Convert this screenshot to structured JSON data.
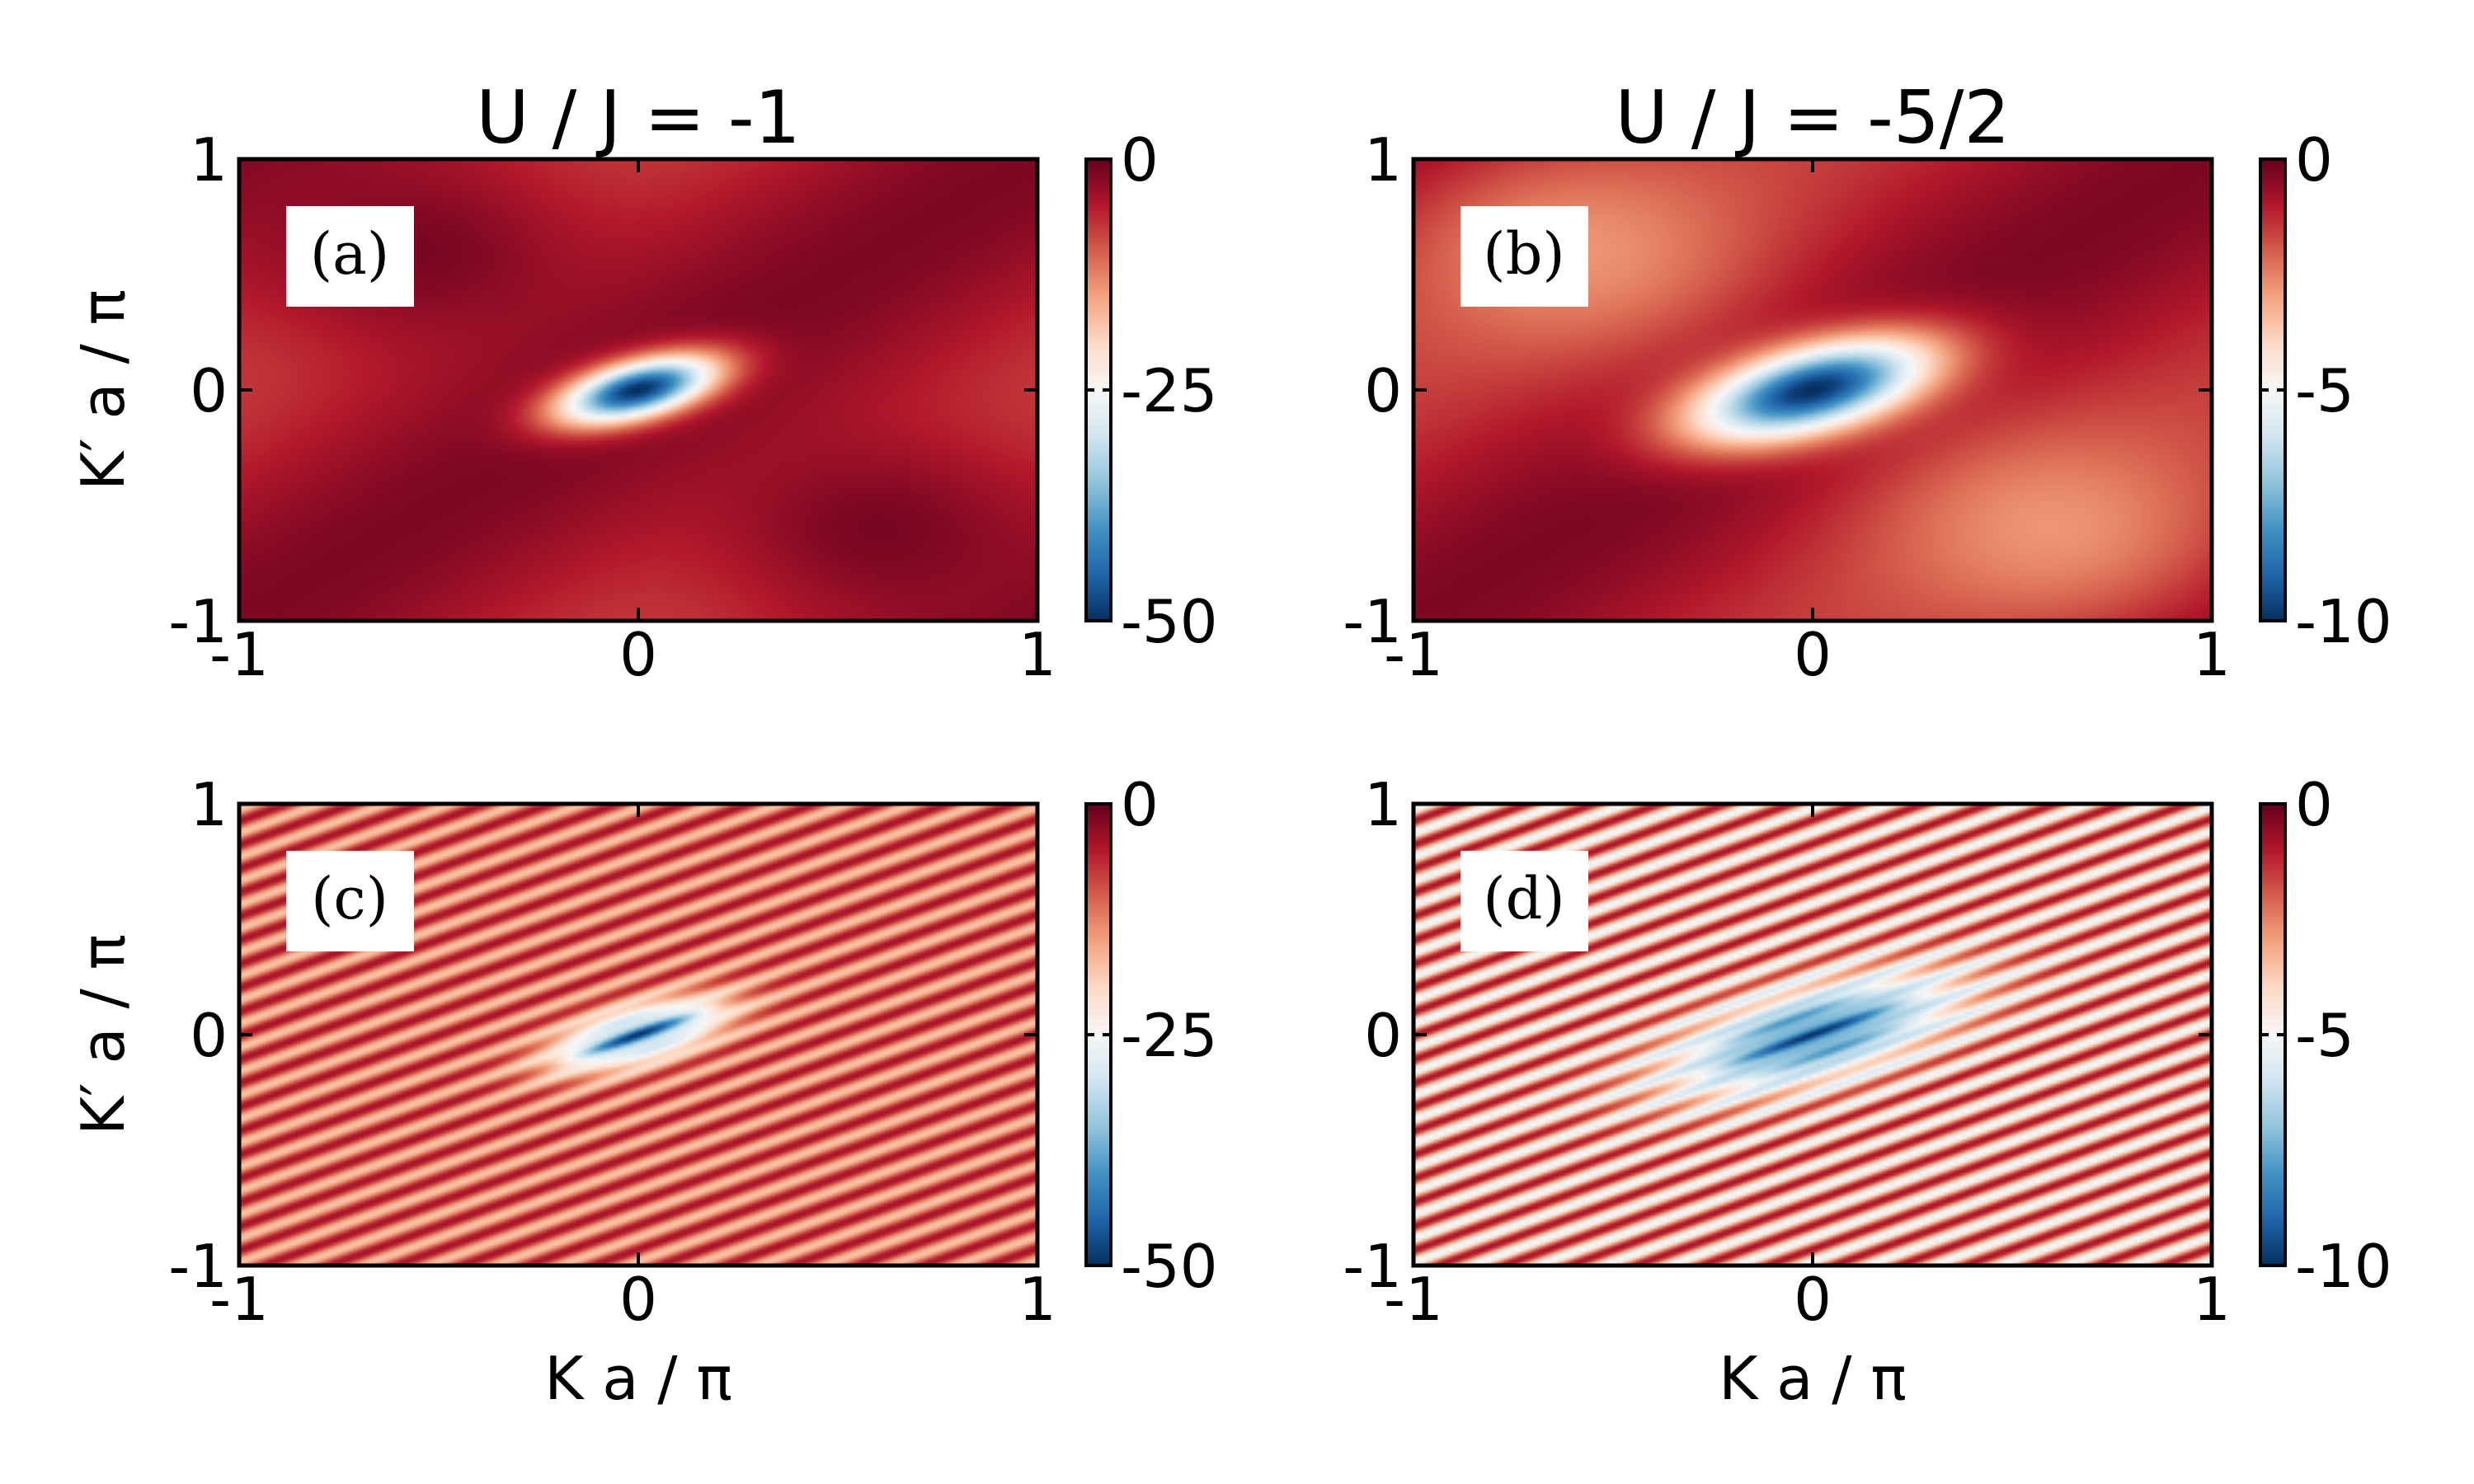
{
  "chart_data": [
    {
      "id": "a",
      "type": "heatmap",
      "panel_label": "(a)",
      "title": "U / J = -1",
      "xlabel": "",
      "ylabel": "K′ a / π",
      "xlim": [
        -1,
        1
      ],
      "ylim": [
        -1,
        1
      ],
      "x_ticks": [
        "-1",
        "0",
        "1"
      ],
      "y_ticks": [
        "-1",
        "0",
        "1"
      ],
      "colorbar": {
        "range": [
          -50,
          0
        ],
        "ticks": [
          "0",
          "-25",
          "-50"
        ],
        "colormap": "RdBu_r"
      },
      "pattern": "smooth",
      "features": [
        {
          "kind": "minimum",
          "x": 0.0,
          "y": 0.0,
          "value": -50
        },
        {
          "kind": "maximum",
          "x": -0.55,
          "y": 0.6,
          "value": 0
        },
        {
          "kind": "maximum",
          "x": 0.6,
          "y": -0.6,
          "value": 0
        }
      ]
    },
    {
      "id": "b",
      "type": "heatmap",
      "panel_label": "(b)",
      "title": "U / J = -5/2",
      "xlabel": "",
      "ylabel": "",
      "xlim": [
        -1,
        1
      ],
      "ylim": [
        -1,
        1
      ],
      "x_ticks": [
        "-1",
        "0",
        "1"
      ],
      "y_ticks": [
        "-1",
        "0",
        "1"
      ],
      "colorbar": {
        "range": [
          -10,
          0
        ],
        "ticks": [
          "0",
          "-5",
          "-10"
        ],
        "colormap": "RdBu_r"
      },
      "pattern": "smooth",
      "features": [
        {
          "kind": "minimum",
          "x": 0.0,
          "y": 0.0,
          "value": -10
        },
        {
          "kind": "local-maximum",
          "x": -0.6,
          "y": 0.6,
          "value": -3
        },
        {
          "kind": "local-maximum",
          "x": 0.6,
          "y": -0.6,
          "value": -3
        }
      ]
    },
    {
      "id": "c",
      "type": "heatmap",
      "panel_label": "(c)",
      "title": "",
      "xlabel": "K a / π",
      "ylabel": "K′ a / π",
      "xlim": [
        -1,
        1
      ],
      "ylim": [
        -1,
        1
      ],
      "x_ticks": [
        "-1",
        "0",
        "1"
      ],
      "y_ticks": [
        "-1",
        "0",
        "1"
      ],
      "colorbar": {
        "range": [
          -50,
          0
        ],
        "ticks": [
          "0",
          "-25",
          "-50"
        ],
        "colormap": "RdBu_r"
      },
      "pattern": "diagonal-stripes",
      "features": [
        {
          "kind": "minimum",
          "x": 0.0,
          "y": 0.0,
          "value": -50
        }
      ]
    },
    {
      "id": "d",
      "type": "heatmap",
      "panel_label": "(d)",
      "title": "",
      "xlabel": "K a / π",
      "ylabel": "",
      "xlim": [
        -1,
        1
      ],
      "ylim": [
        -1,
        1
      ],
      "x_ticks": [
        "-1",
        "0",
        "1"
      ],
      "y_ticks": [
        "-1",
        "0",
        "1"
      ],
      "colorbar": {
        "range": [
          -10,
          0
        ],
        "ticks": [
          "0",
          "-5",
          "-10"
        ],
        "colormap": "RdBu_r"
      },
      "pattern": "diagonal-stripes",
      "features": [
        {
          "kind": "minimum",
          "x": 0.0,
          "y": 0.0,
          "value": -10
        }
      ]
    }
  ],
  "colors": {
    "colormap_stops": [
      "#053061",
      "#2166ac",
      "#4393c3",
      "#92c5de",
      "#d1e5f0",
      "#f7f7f7",
      "#fddbc7",
      "#f4a582",
      "#d6604d",
      "#b2182b",
      "#67001f"
    ],
    "frame": "#000000",
    "label_box": "#ffffff"
  }
}
